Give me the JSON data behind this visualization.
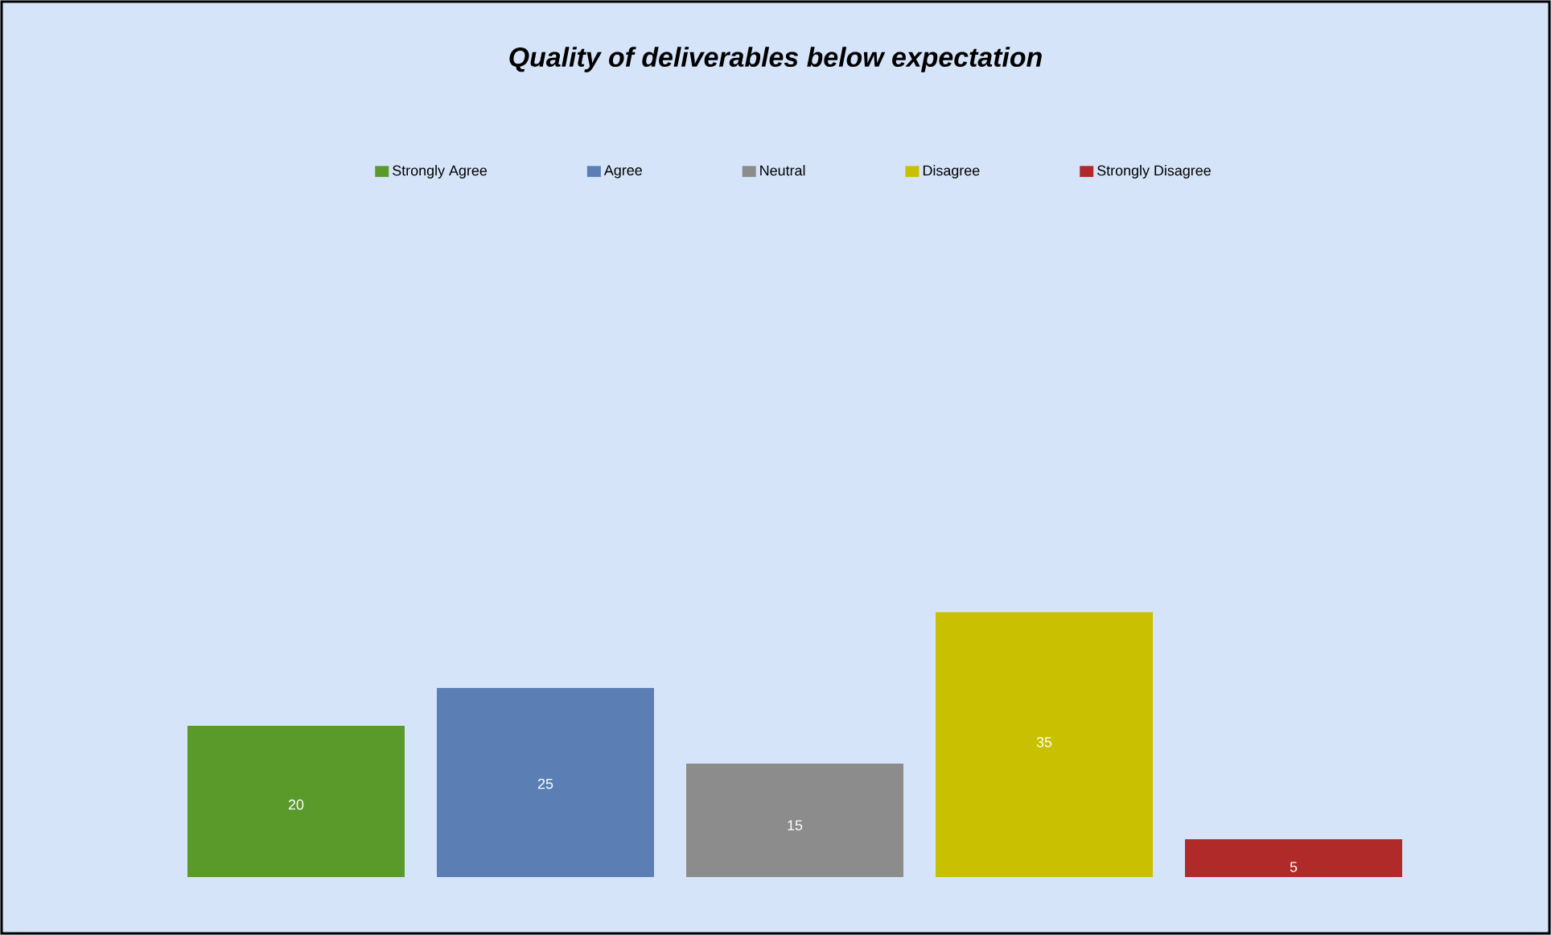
{
  "chart_data": {
    "type": "bar",
    "title": "Quality of deliverables below expectation",
    "categories": [
      null
    ],
    "series": [
      {
        "name": "Strongly Agree",
        "color": "#5a9a2a",
        "values": [
          20
        ]
      },
      {
        "name": "Agree",
        "color": "#5b7fb5",
        "values": [
          25
        ]
      },
      {
        "name": "Neutral",
        "color": "#8c8c8c",
        "values": [
          15
        ]
      },
      {
        "name": "Disagree",
        "color": "#c8c000",
        "values": [
          35
        ]
      },
      {
        "name": "Strongly Disagree",
        "color": "#b02a2a",
        "values": [
          5
        ]
      }
    ],
    "data_labels": true,
    "legend": "top"
  }
}
